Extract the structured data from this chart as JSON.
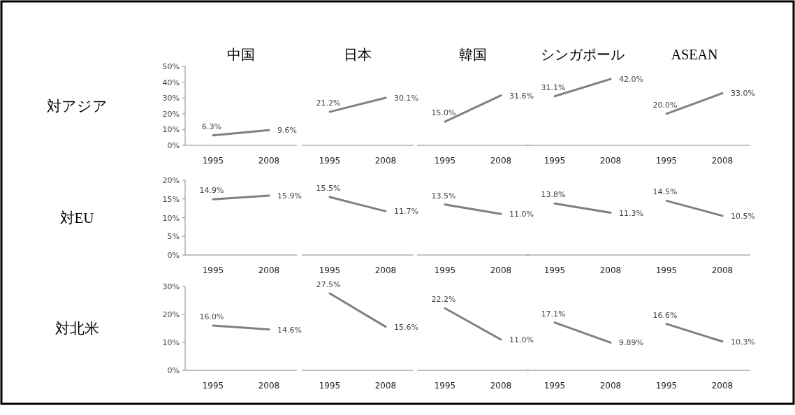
{
  "chart_data": [
    {
      "type": "line",
      "title": "中国",
      "ylabel": "対アジア",
      "categories": [
        "1995",
        "2008"
      ],
      "values": [
        6.3,
        9.6
      ],
      "value_labels": [
        "6.3%",
        "9.6%"
      ],
      "color": "#808080",
      "ylim": [
        0,
        50
      ],
      "yticks": [
        {
          "value": 0,
          "label": "0%"
        },
        {
          "value": 10,
          "label": "10%"
        },
        {
          "value": 20,
          "label": "20%"
        },
        {
          "value": 30,
          "label": "30%"
        },
        {
          "value": 40,
          "label": "40%"
        },
        {
          "value": 50,
          "label": "50%"
        }
      ]
    },
    {
      "type": "line",
      "title": "日本",
      "categories": [
        "1995",
        "2008"
      ],
      "values": [
        21.2,
        30.1
      ],
      "value_labels": [
        "21.2%",
        "30.1%"
      ],
      "color": "#808080",
      "ylim": [
        0,
        50
      ],
      "tick_labels": "x"
    },
    {
      "type": "line",
      "title": "韓国",
      "categories": [
        "1995",
        "2008"
      ],
      "values": [
        15.0,
        31.6
      ],
      "value_labels": [
        "15.0%",
        "31.6%"
      ],
      "color": "#808080",
      "ylim": [
        0,
        50
      ],
      "tick_labels": "x"
    },
    {
      "type": "line",
      "title": "シンガポール",
      "categories": [
        "1995",
        "2008"
      ],
      "values": [
        31.1,
        42.0
      ],
      "value_labels": [
        "31.1%",
        "42.0%"
      ],
      "color": "#808080",
      "ylim": [
        0,
        50
      ],
      "tick_labels": "x"
    },
    {
      "type": "line",
      "title": "ASEAN",
      "categories": [
        "1995",
        "2008"
      ],
      "values": [
        20.0,
        33.0
      ],
      "value_labels": [
        "20.0%",
        "33.0%"
      ],
      "color": "#808080",
      "ylim": [
        0,
        50
      ],
      "tick_labels": "x"
    },
    {
      "type": "line",
      "ylabel": "対EU",
      "categories": [
        "1995",
        "2008"
      ],
      "values": [
        14.9,
        15.9
      ],
      "value_labels": [
        "14.9%",
        "15.9%"
      ],
      "color": "#808080",
      "ylim": [
        0,
        20
      ],
      "yticks": [
        {
          "value": 0,
          "label": "0%"
        },
        {
          "value": 5,
          "label": "5%"
        },
        {
          "value": 10,
          "label": "10%"
        },
        {
          "value": 15,
          "label": "15%"
        },
        {
          "value": 20,
          "label": "20%"
        }
      ]
    },
    {
      "type": "line",
      "categories": [
        "1995",
        "2008"
      ],
      "values": [
        15.5,
        11.7
      ],
      "value_labels": [
        "15.5%",
        "11.7%"
      ],
      "color": "#808080",
      "ylim": [
        0,
        20
      ],
      "tick_labels": "x"
    },
    {
      "type": "line",
      "categories": [
        "1995",
        "2008"
      ],
      "values": [
        13.5,
        11.0
      ],
      "value_labels": [
        "13.5%",
        "11.0%"
      ],
      "color": "#808080",
      "ylim": [
        0,
        20
      ],
      "tick_labels": "x"
    },
    {
      "type": "line",
      "categories": [
        "1995",
        "2008"
      ],
      "values": [
        13.8,
        11.3
      ],
      "value_labels": [
        "13.8%",
        "11.3%"
      ],
      "color": "#808080",
      "ylim": [
        0,
        20
      ],
      "tick_labels": "x"
    },
    {
      "type": "line",
      "categories": [
        "1995",
        "2008"
      ],
      "values": [
        14.5,
        10.5
      ],
      "value_labels": [
        "14.5%",
        "10.5%"
      ],
      "color": "#808080",
      "ylim": [
        0,
        20
      ],
      "tick_labels": "x"
    },
    {
      "type": "line",
      "ylabel": "対北米",
      "categories": [
        "1995",
        "2008"
      ],
      "values": [
        16.0,
        14.6
      ],
      "value_labels": [
        "16.0%",
        "14.6%"
      ],
      "color": "#808080",
      "ylim": [
        0,
        30
      ],
      "yticks": [
        {
          "value": 0,
          "label": "0%"
        },
        {
          "value": 10,
          "label": "10%"
        },
        {
          "value": 20,
          "label": "20%"
        },
        {
          "value": 30,
          "label": "30%"
        }
      ]
    },
    {
      "type": "line",
      "categories": [
        "1995",
        "2008"
      ],
      "values": [
        27.5,
        15.6
      ],
      "value_labels": [
        "27.5%",
        "15.6%"
      ],
      "color": "#808080",
      "ylim": [
        0,
        30
      ],
      "tick_labels": "x"
    },
    {
      "type": "line",
      "categories": [
        "1995",
        "2008"
      ],
      "values": [
        22.2,
        11.0
      ],
      "value_labels": [
        "22.2%",
        "11.0%"
      ],
      "color": "#808080",
      "ylim": [
        0,
        30
      ],
      "tick_labels": "x"
    },
    {
      "type": "line",
      "categories": [
        "1995",
        "2008"
      ],
      "values": [
        17.1,
        9.89
      ],
      "value_labels": [
        "17.1%",
        "9.89%"
      ],
      "color": "#808080",
      "ylim": [
        0,
        30
      ],
      "tick_labels": "x"
    },
    {
      "type": "line",
      "categories": [
        "1995",
        "2008"
      ],
      "values": [
        16.6,
        10.3
      ],
      "value_labels": [
        "16.6%",
        "10.3%"
      ],
      "color": "#808080",
      "ylim": [
        0,
        30
      ],
      "tick_labels": "x"
    }
  ]
}
